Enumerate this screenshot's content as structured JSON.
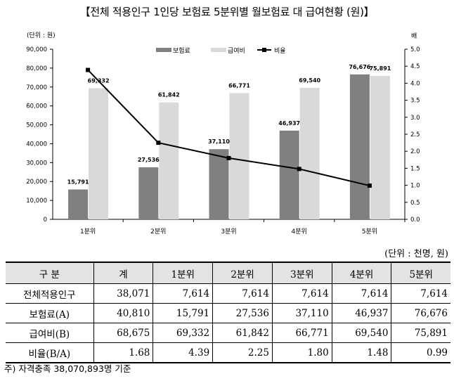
{
  "title": "【전체 적용인구 1인당 보험료 5분위별 월보험료 대 급여현황 (원)】",
  "chart_data": {
    "type": "bar+line",
    "left_unit_label": "(단위 : 원)",
    "right_unit_label": "배",
    "categories": [
      "1분위",
      "2분위",
      "3분위",
      "4분위",
      "5분위"
    ],
    "series": [
      {
        "name": "보험료",
        "type": "bar",
        "color": "#808080",
        "values": [
          15791,
          27536,
          37110,
          46937,
          76676
        ]
      },
      {
        "name": "급여비",
        "type": "bar",
        "color": "#d9d9d9",
        "values": [
          69332,
          61842,
          66771,
          69540,
          75891
        ]
      },
      {
        "name": "비율",
        "type": "line",
        "axis": "right",
        "color": "#000000",
        "values": [
          4.39,
          2.25,
          1.8,
          1.48,
          0.99
        ]
      }
    ],
    "ylim_left": [
      0,
      90000
    ],
    "ylim_right": [
      0,
      5.0
    ],
    "left_ticks": [
      "0",
      "10,000",
      "20,000",
      "30,000",
      "40,000",
      "50,000",
      "60,000",
      "70,000",
      "80,000",
      "90,000"
    ],
    "right_ticks": [
      "0.0",
      "0.5",
      "1.0",
      "1.5",
      "2.0",
      "2.5",
      "3.0",
      "3.5",
      "4.0",
      "4.5",
      "5.0"
    ],
    "bar_labels": {
      "보험료": [
        "15,791",
        "27,536",
        "37,110",
        "46,937",
        "76,676"
      ],
      "급여비": [
        "69,332",
        "61,842",
        "66,771",
        "69,540",
        "75,891"
      ]
    },
    "legend": "top-center"
  },
  "table": {
    "unit": "(단위 : 천명, 원)",
    "headers": [
      "구  분",
      "계",
      "1분위",
      "2분위",
      "3분위",
      "4분위",
      "5분위"
    ],
    "rows": [
      [
        "전체적용인구",
        "38,071",
        "7,614",
        "7,614",
        "7,614",
        "7,614",
        "7,614"
      ],
      [
        "보험료(A)",
        "40,810",
        "15,791",
        "27,536",
        "37,110",
        "46,937",
        "76,676"
      ],
      [
        "급여비(B)",
        "68,675",
        "69,332",
        "61,842",
        "66,771",
        "69,540",
        "75,891"
      ],
      [
        "비율(B/A)",
        "1.68",
        "4.39",
        "2.25",
        "1.80",
        "1.48",
        "0.99"
      ]
    ]
  },
  "note": "주) 자격충족 38,070,893명 기준"
}
